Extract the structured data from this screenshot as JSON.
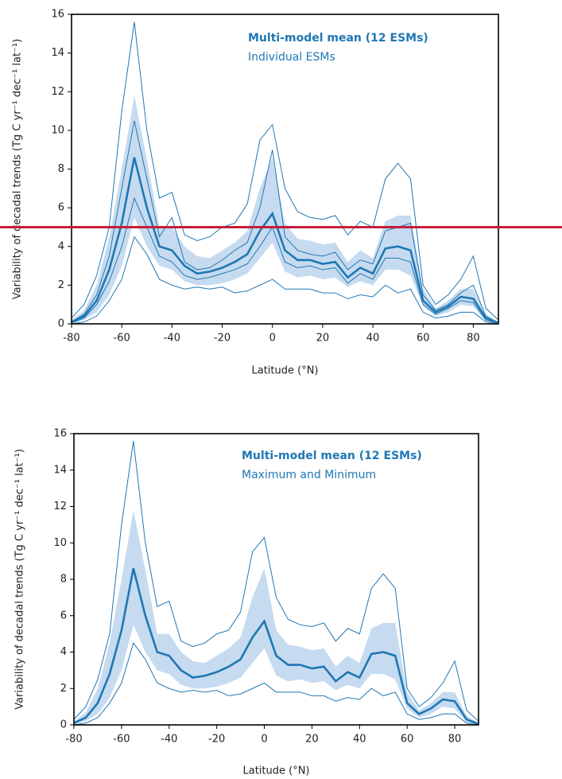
{
  "chart_data": [
    {
      "type": "line",
      "xlabel": "Latitude (°N)",
      "ylabel": "Variability of decadal trends (Tg C yr⁻¹ dec⁻¹ lat⁻¹)",
      "xlim": [
        -80,
        90
      ],
      "ylim": [
        0,
        16
      ],
      "xticks": [
        -80,
        -60,
        -40,
        -20,
        0,
        20,
        40,
        60,
        80
      ],
      "yticks": [
        0,
        2,
        4,
        6,
        8,
        10,
        12,
        14,
        16
      ],
      "x": [
        -80,
        -75,
        -70,
        -65,
        -60,
        -55,
        -50,
        -45,
        -40,
        -35,
        -30,
        -25,
        -20,
        -15,
        -10,
        -5,
        0,
        5,
        10,
        15,
        20,
        25,
        30,
        35,
        40,
        45,
        50,
        55,
        60,
        65,
        70,
        75,
        80,
        85,
        90
      ],
      "series": [
        {
          "name": "Multi-model mean (12 ESMs)",
          "color": "#1f77b4",
          "values": [
            0.1,
            0.4,
            1.2,
            2.8,
            5.2,
            8.6,
            6.0,
            4.0,
            3.8,
            3.0,
            2.6,
            2.7,
            2.9,
            3.2,
            3.6,
            4.8,
            5.7,
            3.8,
            3.3,
            3.3,
            3.1,
            3.2,
            2.4,
            2.9,
            2.6,
            3.9,
            4.0,
            3.8,
            1.2,
            0.6,
            0.9,
            1.4,
            1.3,
            0.3,
            0.05
          ]
        }
      ],
      "band": {
        "color": "#c6dbef",
        "upper": [
          0.2,
          0.7,
          2.0,
          4.5,
          8.0,
          11.8,
          8.5,
          5.0,
          5.0,
          4.0,
          3.5,
          3.4,
          3.8,
          4.2,
          4.8,
          7.0,
          8.6,
          5.2,
          4.4,
          4.3,
          4.1,
          4.2,
          3.2,
          3.8,
          3.4,
          5.3,
          5.6,
          5.6,
          1.8,
          0.8,
          1.2,
          1.8,
          1.8,
          0.5,
          0.1
        ],
        "lower": [
          0,
          0.2,
          0.6,
          1.5,
          3.0,
          5.5,
          4.0,
          3.0,
          2.8,
          2.2,
          2.0,
          2.0,
          2.1,
          2.3,
          2.6,
          3.4,
          4.2,
          2.7,
          2.4,
          2.5,
          2.3,
          2.4,
          1.9,
          2.2,
          2.0,
          2.8,
          2.8,
          2.5,
          0.9,
          0.4,
          0.6,
          1.0,
          0.9,
          0.15,
          0
        ]
      },
      "envelope": {
        "name": "Individual ESMs",
        "color": "#1f77b4",
        "lines": [
          [
            0.3,
            1.0,
            2.5,
            5.0,
            11.0,
            15.6,
            10.0,
            6.5,
            6.8,
            4.6,
            4.3,
            4.5,
            5.0,
            5.2,
            6.2,
            9.5,
            10.3,
            7.0,
            5.8,
            5.5,
            5.4,
            5.6,
            4.6,
            5.3,
            5.0,
            7.5,
            8.3,
            7.5,
            2.0,
            1.0,
            1.5,
            2.3,
            3.5,
            0.8,
            0.2
          ],
          [
            0.1,
            0.5,
            1.5,
            3.5,
            7.0,
            10.5,
            7.5,
            4.5,
            5.5,
            3.2,
            2.8,
            2.9,
            3.3,
            3.8,
            4.2,
            6.0,
            9.0,
            4.5,
            3.8,
            3.6,
            3.5,
            3.7,
            2.8,
            3.3,
            3.1,
            4.8,
            5.0,
            5.2,
            1.5,
            0.7,
            1.0,
            1.6,
            2.0,
            0.4,
            0.05
          ],
          [
            0.05,
            0.3,
            1.0,
            2.2,
            4.0,
            6.5,
            5.0,
            3.5,
            3.2,
            2.5,
            2.3,
            2.4,
            2.6,
            2.8,
            3.1,
            4.0,
            5.0,
            3.2,
            2.9,
            3.0,
            2.8,
            2.9,
            2.1,
            2.6,
            2.3,
            3.4,
            3.4,
            3.2,
            1.0,
            0.5,
            0.8,
            1.2,
            1.1,
            0.2,
            0.02
          ],
          [
            0,
            0.1,
            0.4,
            1.2,
            2.3,
            4.5,
            3.6,
            2.3,
            2.0,
            1.8,
            1.9,
            1.8,
            1.9,
            1.6,
            1.7,
            2.0,
            2.3,
            1.8,
            1.8,
            1.8,
            1.6,
            1.6,
            1.3,
            1.5,
            1.4,
            2.0,
            1.6,
            1.8,
            0.6,
            0.3,
            0.4,
            0.6,
            0.6,
            0.1,
            0
          ]
        ]
      },
      "hline": {
        "value": 5,
        "color": "#c41e3a"
      }
    },
    {
      "type": "line",
      "xlabel": "Latitude (°N)",
      "ylabel": "Variability of decadal trends (Tg C yr⁻¹ dec⁻¹ lat⁻¹)",
      "xlim": [
        -80,
        90
      ],
      "ylim": [
        0,
        16
      ],
      "xticks": [
        -80,
        -60,
        -40,
        -20,
        0,
        20,
        40,
        60,
        80
      ],
      "yticks": [
        0,
        2,
        4,
        6,
        8,
        10,
        12,
        14,
        16
      ],
      "x": [
        -80,
        -75,
        -70,
        -65,
        -60,
        -55,
        -50,
        -45,
        -40,
        -35,
        -30,
        -25,
        -20,
        -15,
        -10,
        -5,
        0,
        5,
        10,
        15,
        20,
        25,
        30,
        35,
        40,
        45,
        50,
        55,
        60,
        65,
        70,
        75,
        80,
        85,
        90
      ],
      "series": [
        {
          "name": "Multi-model mean (12 ESMs)",
          "color": "#1f77b4",
          "values": [
            0.1,
            0.4,
            1.2,
            2.8,
            5.2,
            8.6,
            6.0,
            4.0,
            3.8,
            3.0,
            2.6,
            2.7,
            2.9,
            3.2,
            3.6,
            4.8,
            5.7,
            3.8,
            3.3,
            3.3,
            3.1,
            3.2,
            2.4,
            2.9,
            2.6,
            3.9,
            4.0,
            3.8,
            1.2,
            0.6,
            0.9,
            1.4,
            1.3,
            0.3,
            0.05
          ]
        }
      ],
      "band": {
        "color": "#c6dbef",
        "upper": [
          0.2,
          0.7,
          2.0,
          4.5,
          8.0,
          11.8,
          8.5,
          5.0,
          5.0,
          4.0,
          3.5,
          3.4,
          3.8,
          4.2,
          4.8,
          7.0,
          8.6,
          5.2,
          4.4,
          4.3,
          4.1,
          4.2,
          3.2,
          3.8,
          3.4,
          5.3,
          5.6,
          5.6,
          1.8,
          0.8,
          1.2,
          1.8,
          1.8,
          0.5,
          0.1
        ],
        "lower": [
          0,
          0.2,
          0.6,
          1.5,
          3.0,
          5.5,
          4.0,
          3.0,
          2.8,
          2.2,
          2.0,
          2.0,
          2.1,
          2.3,
          2.6,
          3.4,
          4.2,
          2.7,
          2.4,
          2.5,
          2.3,
          2.4,
          1.9,
          2.2,
          2.0,
          2.8,
          2.8,
          2.5,
          0.9,
          0.4,
          0.6,
          1.0,
          0.9,
          0.15,
          0
        ]
      },
      "envelope": {
        "name": "Maximum and Minimum",
        "color": "#1f77b4",
        "lines": [
          [
            0.3,
            1.0,
            2.5,
            5.0,
            11.0,
            15.6,
            10.0,
            6.5,
            6.8,
            4.6,
            4.3,
            4.5,
            5.0,
            5.2,
            6.2,
            9.5,
            10.3,
            7.0,
            5.8,
            5.5,
            5.4,
            5.6,
            4.6,
            5.3,
            5.0,
            7.5,
            8.3,
            7.5,
            2.0,
            1.0,
            1.5,
            2.3,
            3.5,
            0.8,
            0.2
          ],
          [
            0,
            0.1,
            0.4,
            1.2,
            2.3,
            4.5,
            3.6,
            2.3,
            2.0,
            1.8,
            1.9,
            1.8,
            1.9,
            1.6,
            1.7,
            2.0,
            2.3,
            1.8,
            1.8,
            1.8,
            1.6,
            1.6,
            1.3,
            1.5,
            1.4,
            2.0,
            1.6,
            1.8,
            0.6,
            0.3,
            0.4,
            0.6,
            0.6,
            0.1,
            0
          ]
        ]
      }
    }
  ]
}
